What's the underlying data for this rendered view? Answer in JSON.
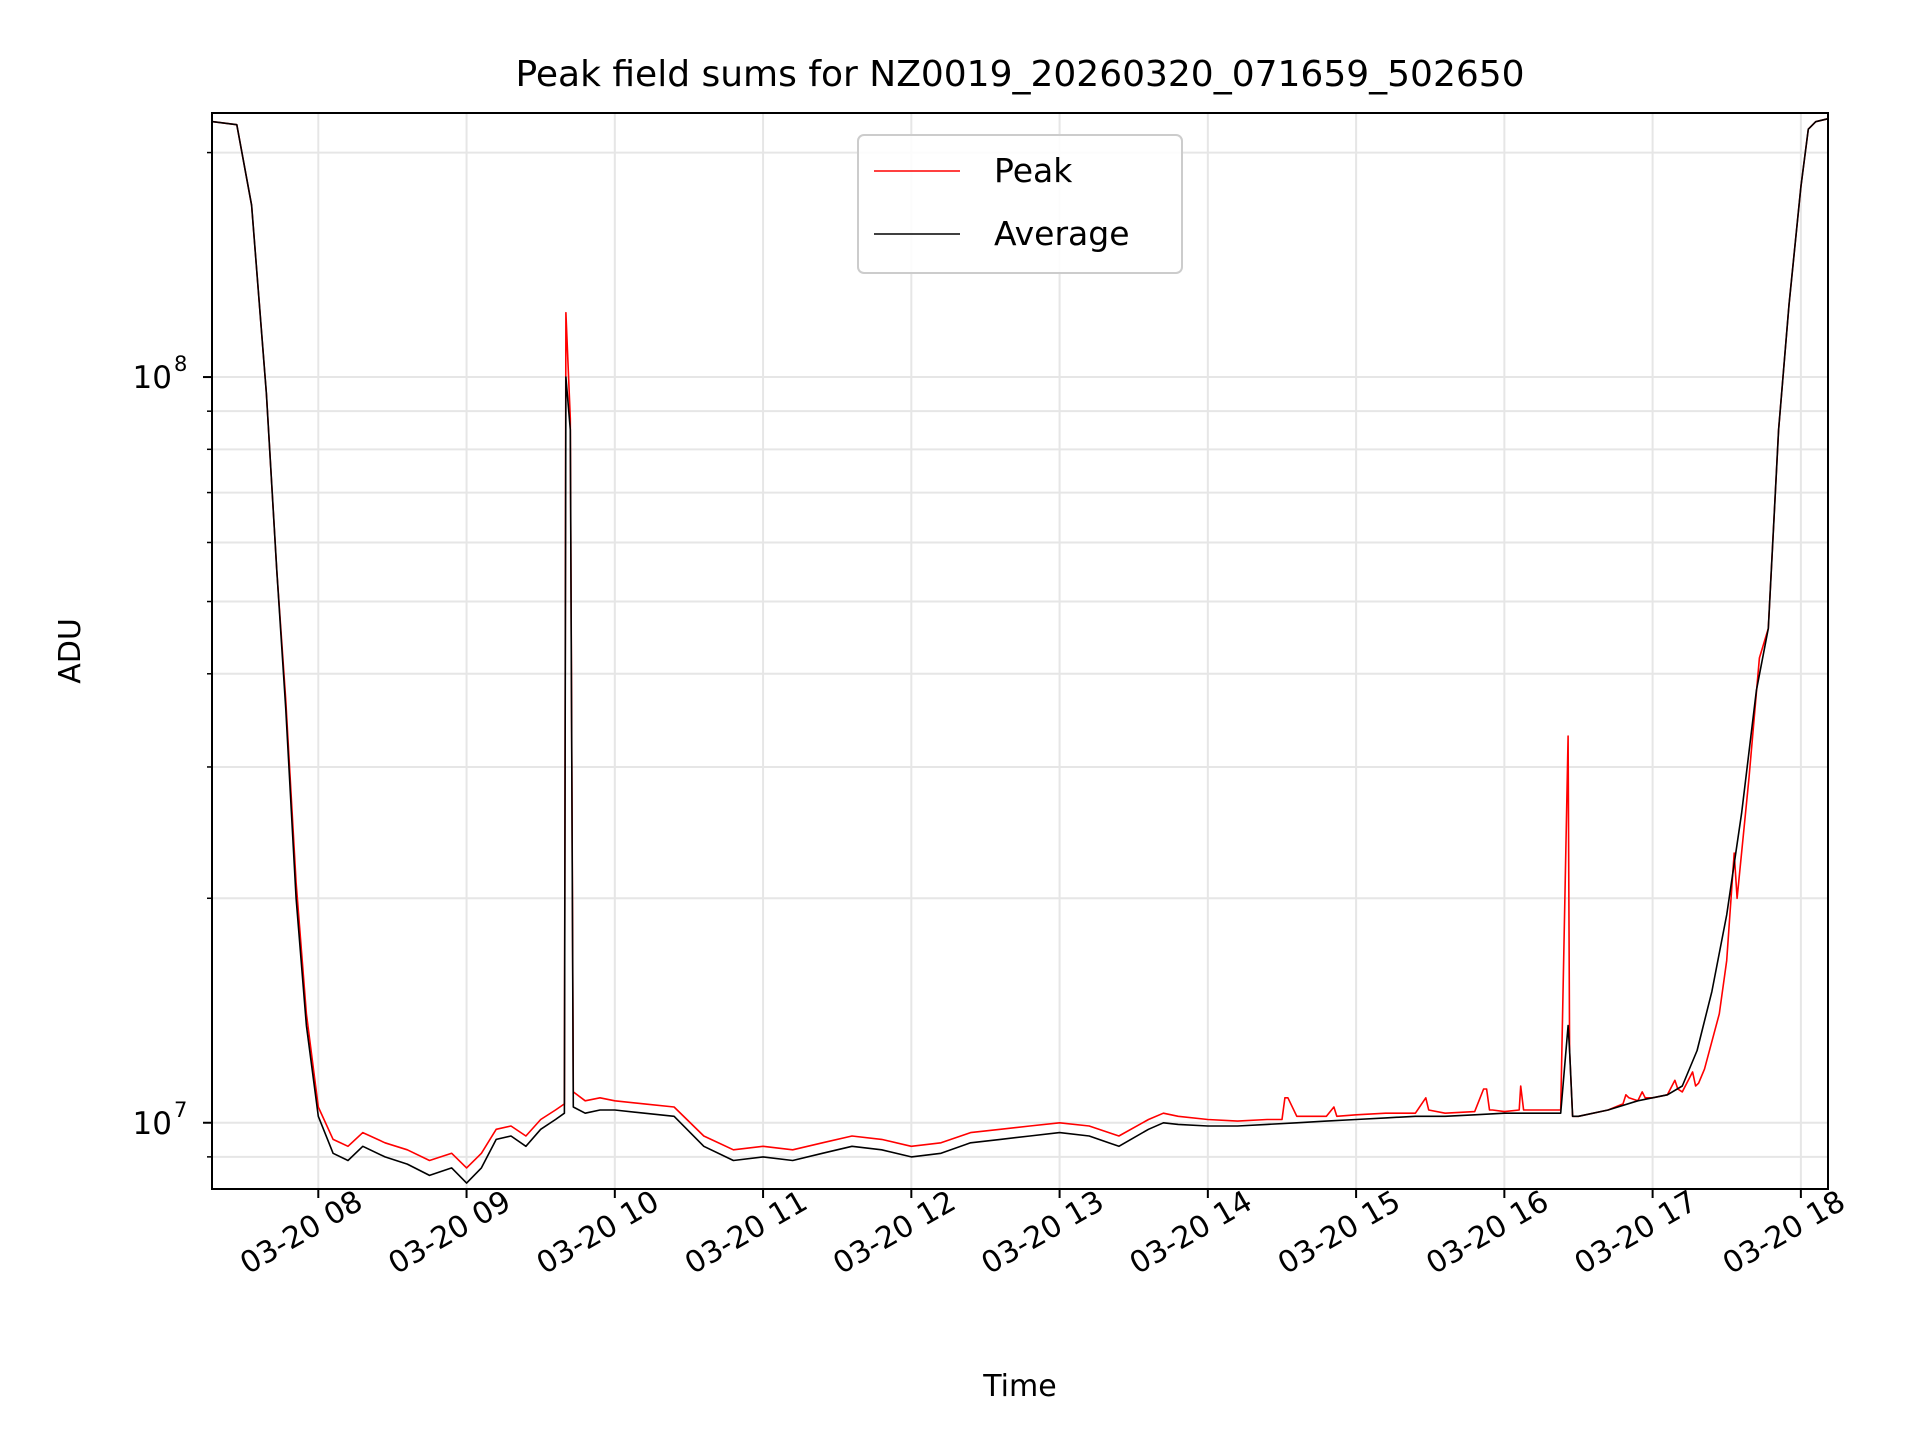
{
  "chart_data": {
    "type": "line",
    "title": "Peak field sums for NZ0019_20260320_071659_502650",
    "xlabel": "Time",
    "ylabel": "ADU",
    "yscale": "log",
    "x_unit": "hours",
    "xlim": [
      7.283,
      18.183
    ],
    "ylim": [
      8150000,
      226000000
    ],
    "x_ticks": [
      {
        "value": 8,
        "label": "03-20 08"
      },
      {
        "value": 9,
        "label": "03-20 09"
      },
      {
        "value": 10,
        "label": "03-20 10"
      },
      {
        "value": 11,
        "label": "03-20 11"
      },
      {
        "value": 12,
        "label": "03-20 12"
      },
      {
        "value": 13,
        "label": "03-20 13"
      },
      {
        "value": 14,
        "label": "03-20 14"
      },
      {
        "value": 15,
        "label": "03-20 15"
      },
      {
        "value": 16,
        "label": "03-20 16"
      },
      {
        "value": 17,
        "label": "03-20 17"
      },
      {
        "value": 18,
        "label": "03-20 18"
      }
    ],
    "y_major_ticks": [
      {
        "value": 10000000,
        "base": "10",
        "exp": "7"
      },
      {
        "value": 100000000,
        "base": "10",
        "exp": "8"
      }
    ],
    "y_minor_ticks": [
      9000000,
      20000000,
      30000000,
      40000000,
      50000000,
      60000000,
      70000000,
      80000000,
      90000000,
      200000000
    ],
    "grid": true,
    "legend_position": "top-center",
    "series": [
      {
        "name": "Peak",
        "color": "#ff0000",
        "x": [
          7.29,
          7.45,
          7.55,
          7.65,
          7.72,
          7.78,
          7.85,
          7.92,
          8.0,
          8.1,
          8.2,
          8.3,
          8.45,
          8.6,
          8.75,
          8.9,
          9.0,
          9.1,
          9.2,
          9.3,
          9.4,
          9.5,
          9.6,
          9.66,
          9.67,
          9.7,
          9.72,
          9.8,
          9.9,
          10.0,
          10.2,
          10.4,
          10.6,
          10.8,
          11.0,
          11.2,
          11.4,
          11.6,
          11.8,
          12.0,
          12.2,
          12.4,
          12.6,
          12.8,
          13.0,
          13.2,
          13.4,
          13.6,
          13.7,
          13.8,
          14.0,
          14.2,
          14.4,
          14.5,
          14.52,
          14.54,
          14.6,
          14.8,
          14.85,
          14.87,
          15.0,
          15.2,
          15.4,
          15.47,
          15.49,
          15.6,
          15.8,
          15.86,
          15.88,
          15.9,
          15.92,
          16.0,
          16.1,
          16.11,
          16.13,
          16.2,
          16.3,
          16.38,
          16.43,
          16.44,
          16.46,
          16.5,
          16.7,
          16.8,
          16.82,
          16.84,
          16.9,
          16.93,
          16.95,
          17.0,
          17.1,
          17.15,
          17.17,
          17.2,
          17.27,
          17.29,
          17.31,
          17.35,
          17.45,
          17.5,
          17.55,
          17.57,
          17.65,
          17.72,
          17.78,
          17.85,
          17.92,
          18.0,
          18.05,
          18.1,
          18.18
        ],
        "y": [
          220000000,
          218000000,
          170000000,
          95000000,
          55000000,
          37000000,
          21000000,
          14000000,
          10500000,
          9500000,
          9300000,
          9700000,
          9400000,
          9200000,
          8900000,
          9100000,
          8700000,
          9100000,
          9800000,
          9900000,
          9600000,
          10100000,
          10400000,
          10600000,
          122000000,
          88000000,
          11000000,
          10700000,
          10800000,
          10700000,
          10600000,
          10500000,
          9600000,
          9200000,
          9300000,
          9200000,
          9400000,
          9600000,
          9500000,
          9300000,
          9400000,
          9700000,
          9800000,
          9900000,
          10000000,
          9900000,
          9600000,
          10100000,
          10300000,
          10200000,
          10100000,
          10050000,
          10100000,
          10100000,
          10800000,
          10800000,
          10200000,
          10200000,
          10500000,
          10200000,
          10250000,
          10300000,
          10300000,
          10800000,
          10400000,
          10300000,
          10350000,
          11100000,
          11100000,
          10400000,
          10400000,
          10350000,
          10400000,
          11200000,
          10400000,
          10400000,
          10400000,
          10400000,
          33000000,
          12500000,
          10200000,
          10200000,
          10400000,
          10600000,
          10900000,
          10800000,
          10700000,
          11000000,
          10800000,
          10800000,
          10900000,
          11400000,
          11100000,
          11000000,
          11700000,
          11200000,
          11300000,
          11800000,
          14000000,
          16500000,
          23000000,
          20000000,
          29000000,
          42000000,
          46000000,
          85000000,
          125000000,
          180000000,
          215000000,
          220000000,
          222000000
        ]
      },
      {
        "name": "Average",
        "color": "#000000",
        "x": [
          7.29,
          7.45,
          7.55,
          7.65,
          7.72,
          7.78,
          7.85,
          7.92,
          8.0,
          8.1,
          8.2,
          8.3,
          8.45,
          8.6,
          8.75,
          8.9,
          9.0,
          9.1,
          9.2,
          9.3,
          9.4,
          9.5,
          9.6,
          9.66,
          9.67,
          9.7,
          9.72,
          9.8,
          9.9,
          10.0,
          10.2,
          10.4,
          10.6,
          10.8,
          11.0,
          11.2,
          11.4,
          11.6,
          11.8,
          12.0,
          12.2,
          12.4,
          12.6,
          12.8,
          13.0,
          13.2,
          13.4,
          13.6,
          13.7,
          13.8,
          14.0,
          14.2,
          14.4,
          14.6,
          14.8,
          15.0,
          15.2,
          15.4,
          15.6,
          15.8,
          16.0,
          16.2,
          16.38,
          16.43,
          16.44,
          16.46,
          16.5,
          16.7,
          16.9,
          17.0,
          17.1,
          17.2,
          17.3,
          17.4,
          17.5,
          17.6,
          17.7,
          17.78,
          17.85,
          17.92,
          18.0,
          18.05,
          18.1,
          18.18
        ],
        "y": [
          220000000,
          218000000,
          170000000,
          95000000,
          55000000,
          36000000,
          20000000,
          13500000,
          10200000,
          9100000,
          8900000,
          9300000,
          9000000,
          8800000,
          8500000,
          8700000,
          8300000,
          8700000,
          9500000,
          9600000,
          9300000,
          9800000,
          10100000,
          10300000,
          100000000,
          85000000,
          10500000,
          10300000,
          10400000,
          10400000,
          10300000,
          10200000,
          9300000,
          8900000,
          9000000,
          8900000,
          9100000,
          9300000,
          9200000,
          9000000,
          9100000,
          9400000,
          9500000,
          9600000,
          9700000,
          9600000,
          9300000,
          9800000,
          10000000,
          9950000,
          9900000,
          9900000,
          9950000,
          10000000,
          10050000,
          10100000,
          10150000,
          10200000,
          10200000,
          10250000,
          10300000,
          10300000,
          10300000,
          13500000,
          12500000,
          10200000,
          10200000,
          10400000,
          10700000,
          10800000,
          10900000,
          11200000,
          12500000,
          15000000,
          19000000,
          26000000,
          38000000,
          46000000,
          85000000,
          125000000,
          180000000,
          215000000,
          220000000,
          222000000
        ]
      }
    ]
  }
}
